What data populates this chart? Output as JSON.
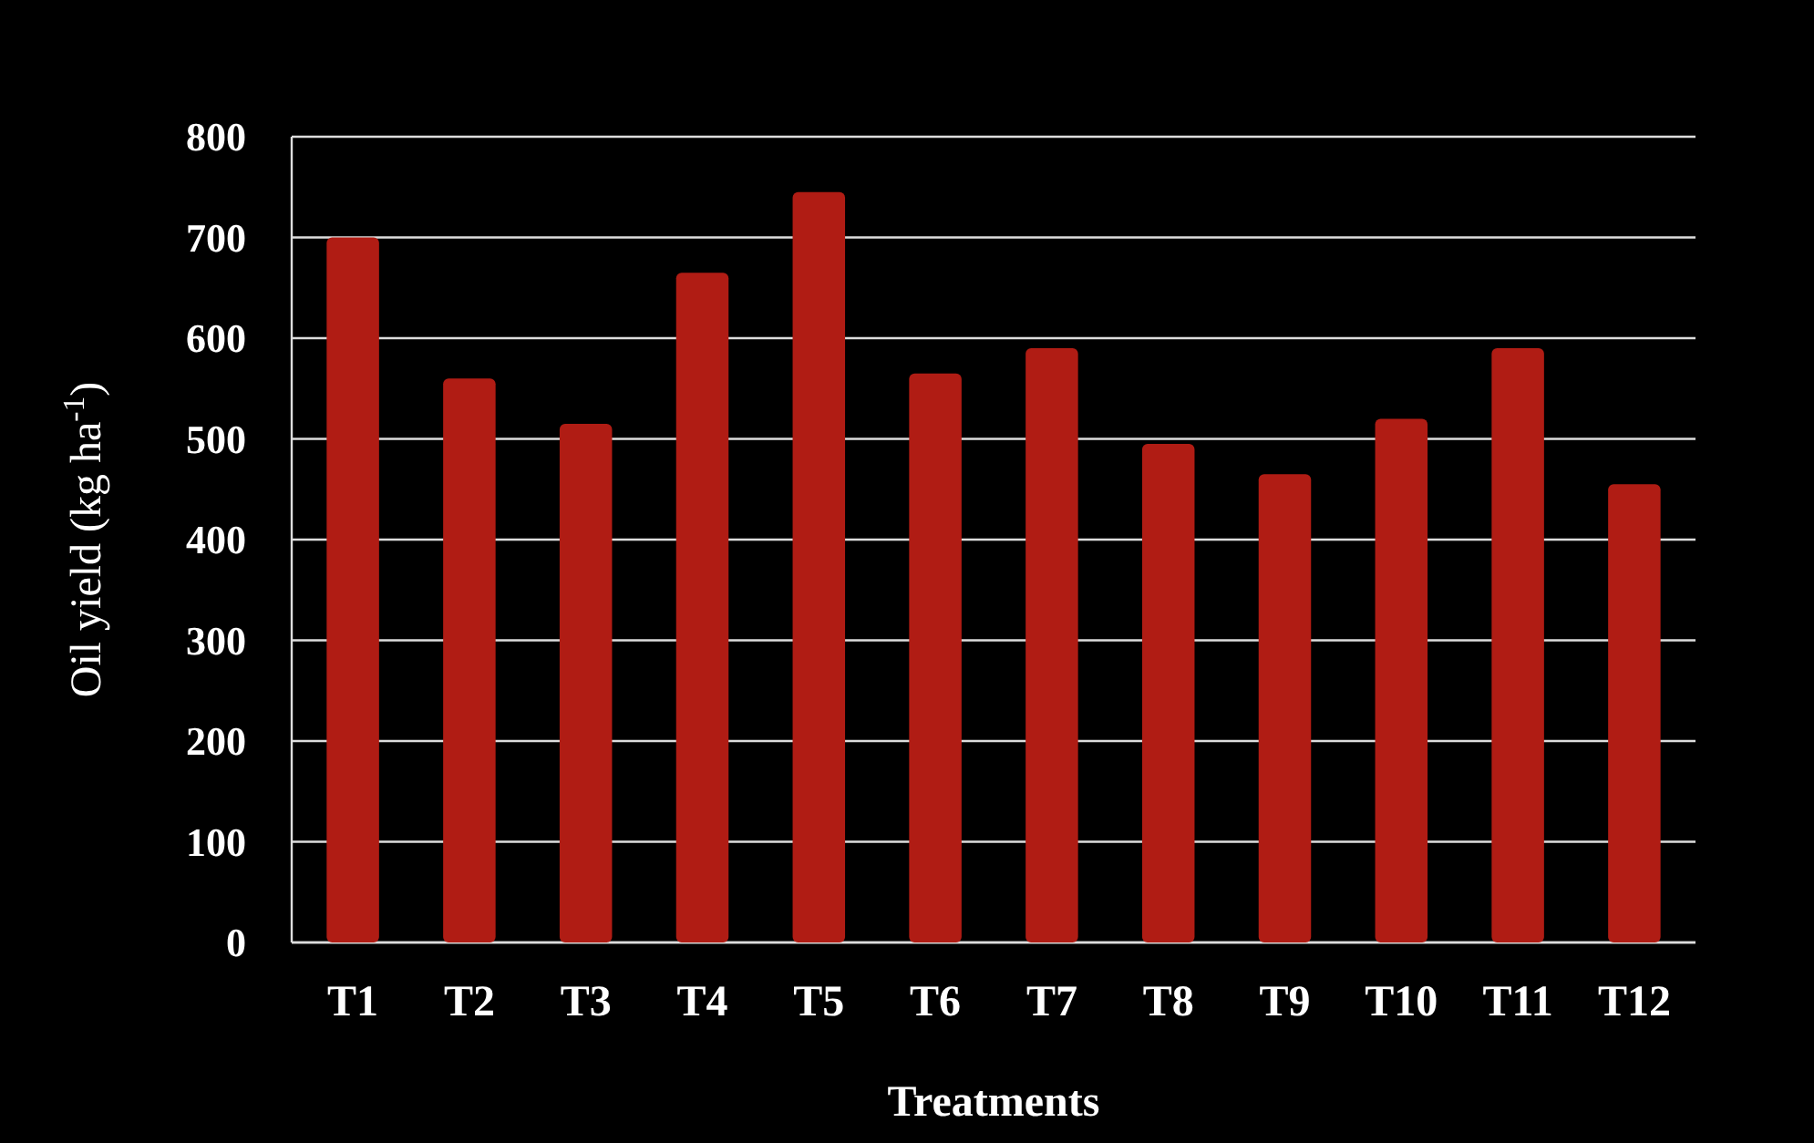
{
  "chart_data": {
    "type": "bar",
    "xlabel": "Treatments",
    "ylabel": "Oil yield (kg ha$^{-1}$)",
    "categories": [
      "T1",
      "T2",
      "T3",
      "T4",
      "T5",
      "T6",
      "T7",
      "T8",
      "T9",
      "T10",
      "T11",
      "T12"
    ],
    "values": [
      700,
      560,
      515,
      665,
      745,
      565,
      590,
      495,
      465,
      520,
      590,
      455
    ],
    "color": "#b01c14",
    "ylim": [
      0,
      800
    ],
    "yticks": [
      0,
      100,
      200,
      300,
      400,
      500,
      600,
      700,
      800
    ],
    "grid": "y"
  }
}
